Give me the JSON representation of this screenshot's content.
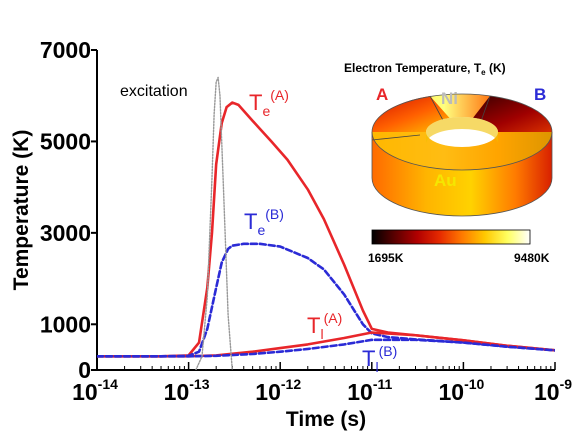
{
  "chart_data": {
    "type": "line",
    "title": "",
    "xlabel": "Time (s)",
    "ylabel": "Temperature (K)",
    "xscale": "log",
    "xlim": [
      1e-14,
      1e-09
    ],
    "ylim": [
      0,
      7000
    ],
    "grid": false,
    "x_ticks": [
      {
        "base": "10",
        "exp": "-14",
        "value": 1e-14
      },
      {
        "base": "10",
        "exp": "-13",
        "value": 1e-13
      },
      {
        "base": "10",
        "exp": "-12",
        "value": 1e-12
      },
      {
        "base": "10",
        "exp": "-11",
        "value": 1e-11
      },
      {
        "base": "10",
        "exp": "-10",
        "value": 1e-10
      },
      {
        "base": "10",
        "exp": "-9",
        "value": 1e-09
      }
    ],
    "y_ticks": [
      {
        "label": "0",
        "value": 0
      },
      {
        "label": "1000",
        "value": 1000
      },
      {
        "label": "3000",
        "value": 3000
      },
      {
        "label": "5000",
        "value": 5000
      },
      {
        "label": "7000",
        "value": 7000
      }
    ],
    "series": [
      {
        "key": "Te_A",
        "label_base": "T",
        "label_sub": "e",
        "label_sup": "(A)",
        "color": "#e8262a",
        "style": "solid",
        "x": [
          1e-14,
          5e-14,
          1e-13,
          1.3e-13,
          1.6e-13,
          1.8e-13,
          2e-13,
          2.3e-13,
          2.6e-13,
          3e-13,
          3.5e-13,
          5e-13,
          8e-13,
          1.2e-12,
          2e-12,
          3e-12,
          5e-12,
          8e-12,
          1e-11,
          1.5e-11,
          3e-11,
          1e-10,
          3e-10,
          1e-09
        ],
        "y": [
          300,
          300,
          320,
          600,
          1800,
          3000,
          4500,
          5400,
          5750,
          5850,
          5800,
          5450,
          5000,
          4600,
          3950,
          3300,
          2300,
          1300,
          900,
          820,
          760,
          650,
          530,
          430
        ]
      },
      {
        "key": "Te_B",
        "label_base": "T",
        "label_sub": "e",
        "label_sup": "(B)",
        "color": "#2b2bd6",
        "style": "dashed",
        "x": [
          1e-14,
          5e-14,
          1e-13,
          1.3e-13,
          1.6e-13,
          2e-13,
          2.3e-13,
          2.7e-13,
          3e-13,
          4e-13,
          6e-13,
          1e-12,
          2e-12,
          3e-12,
          5e-12,
          8e-12,
          1e-11,
          1.5e-11,
          3e-11,
          1e-10,
          3e-10,
          1e-09
        ],
        "y": [
          300,
          300,
          310,
          400,
          900,
          1800,
          2350,
          2650,
          2720,
          2760,
          2760,
          2700,
          2450,
          2200,
          1650,
          1000,
          800,
          720,
          670,
          600,
          510,
          430
        ]
      },
      {
        "key": "Tl_A",
        "label_base": "T",
        "label_sub": "l",
        "label_sup": "(A)",
        "color": "#e8262a",
        "style": "solid",
        "x": [
          1e-14,
          1e-13,
          2e-13,
          5e-13,
          1e-12,
          2e-12,
          5e-12,
          1e-11,
          3e-11,
          1e-10,
          3e-10,
          1e-09
        ],
        "y": [
          300,
          300,
          320,
          400,
          480,
          560,
          700,
          820,
          760,
          650,
          530,
          430
        ]
      },
      {
        "key": "Tl_B",
        "label_base": "T",
        "label_sub": "l",
        "label_sup": "(B)",
        "color": "#2b2bd6",
        "style": "dashed",
        "x": [
          1e-14,
          1e-13,
          2e-13,
          5e-13,
          1e-12,
          2e-12,
          5e-12,
          1e-11,
          3e-11,
          1e-10,
          3e-10,
          1e-09
        ],
        "y": [
          300,
          300,
          310,
          350,
          400,
          460,
          560,
          660,
          660,
          600,
          510,
          430
        ]
      },
      {
        "key": "excitation",
        "label": "excitation",
        "color": "#999999",
        "style": "dotted",
        "x": [
          1.2e-13,
          1.4e-13,
          1.6e-13,
          1.8e-13,
          1.9e-13,
          2e-13,
          2.1e-13,
          2.2e-13,
          2.4e-13,
          2.7e-13,
          3e-13
        ],
        "y": [
          0,
          300,
          1600,
          4200,
          5600,
          6300,
          6400,
          6000,
          4000,
          1200,
          0
        ]
      }
    ],
    "inset": {
      "title_base": "Electron Temperature, T",
      "title_sub": "e",
      "title_unit": " (K)",
      "labels": {
        "A": "A",
        "B": "B",
        "Ni": "Ni",
        "Au": "Au"
      },
      "label_colors": {
        "A": "#e8262a",
        "B": "#2b2bd6",
        "Ni": "#bbbbbb",
        "Au": "#f5e600"
      },
      "colorbar_min": "1695K",
      "colorbar_max": "9480K",
      "colorbar_colors": [
        "#000000",
        "#5a0000",
        "#b00000",
        "#e62a00",
        "#ff7a00",
        "#ffc800",
        "#ffff60",
        "#ffffff"
      ]
    }
  }
}
